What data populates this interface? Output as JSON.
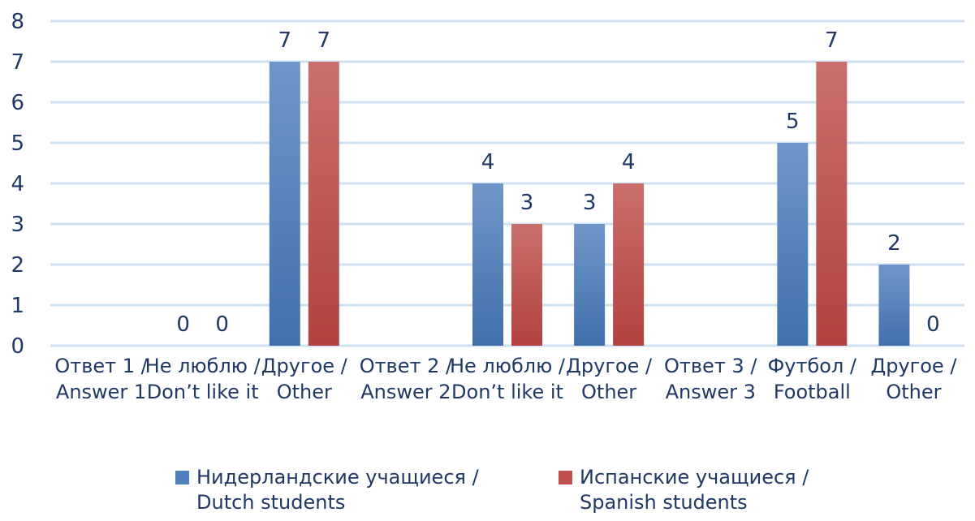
{
  "chart_data": {
    "type": "bar",
    "categories": [
      [
        "Ответ 1 /",
        "Answer 1"
      ],
      [
        "Не люблю /",
        "Don’t like it"
      ],
      [
        "Другое /",
        "Other"
      ],
      [
        "Ответ 2 /",
        "Answer 2"
      ],
      [
        "Не люблю /",
        "Don’t like it"
      ],
      [
        "Другое /",
        "Other"
      ],
      [
        "Ответ 3 /",
        "Answer 3"
      ],
      [
        "Футбол /",
        "Football"
      ],
      [
        "Другое /",
        "Other"
      ]
    ],
    "series": [
      {
        "name": [
          "Нидерландские учащиеся /",
          "Dutch students"
        ],
        "color": "#4f81bd",
        "values": [
          null,
          0,
          7,
          null,
          4,
          3,
          null,
          5,
          2
        ]
      },
      {
        "name": [
          "Испанские учащиеся /",
          "Spanish students"
        ],
        "color": "#c0504d",
        "values": [
          null,
          0,
          7,
          null,
          3,
          4,
          null,
          7,
          0
        ]
      }
    ],
    "ylim": [
      0,
      8
    ],
    "yticks": [
      0,
      1,
      2,
      3,
      4,
      5,
      6,
      7,
      8
    ],
    "grid": true,
    "legend": "bottom"
  }
}
